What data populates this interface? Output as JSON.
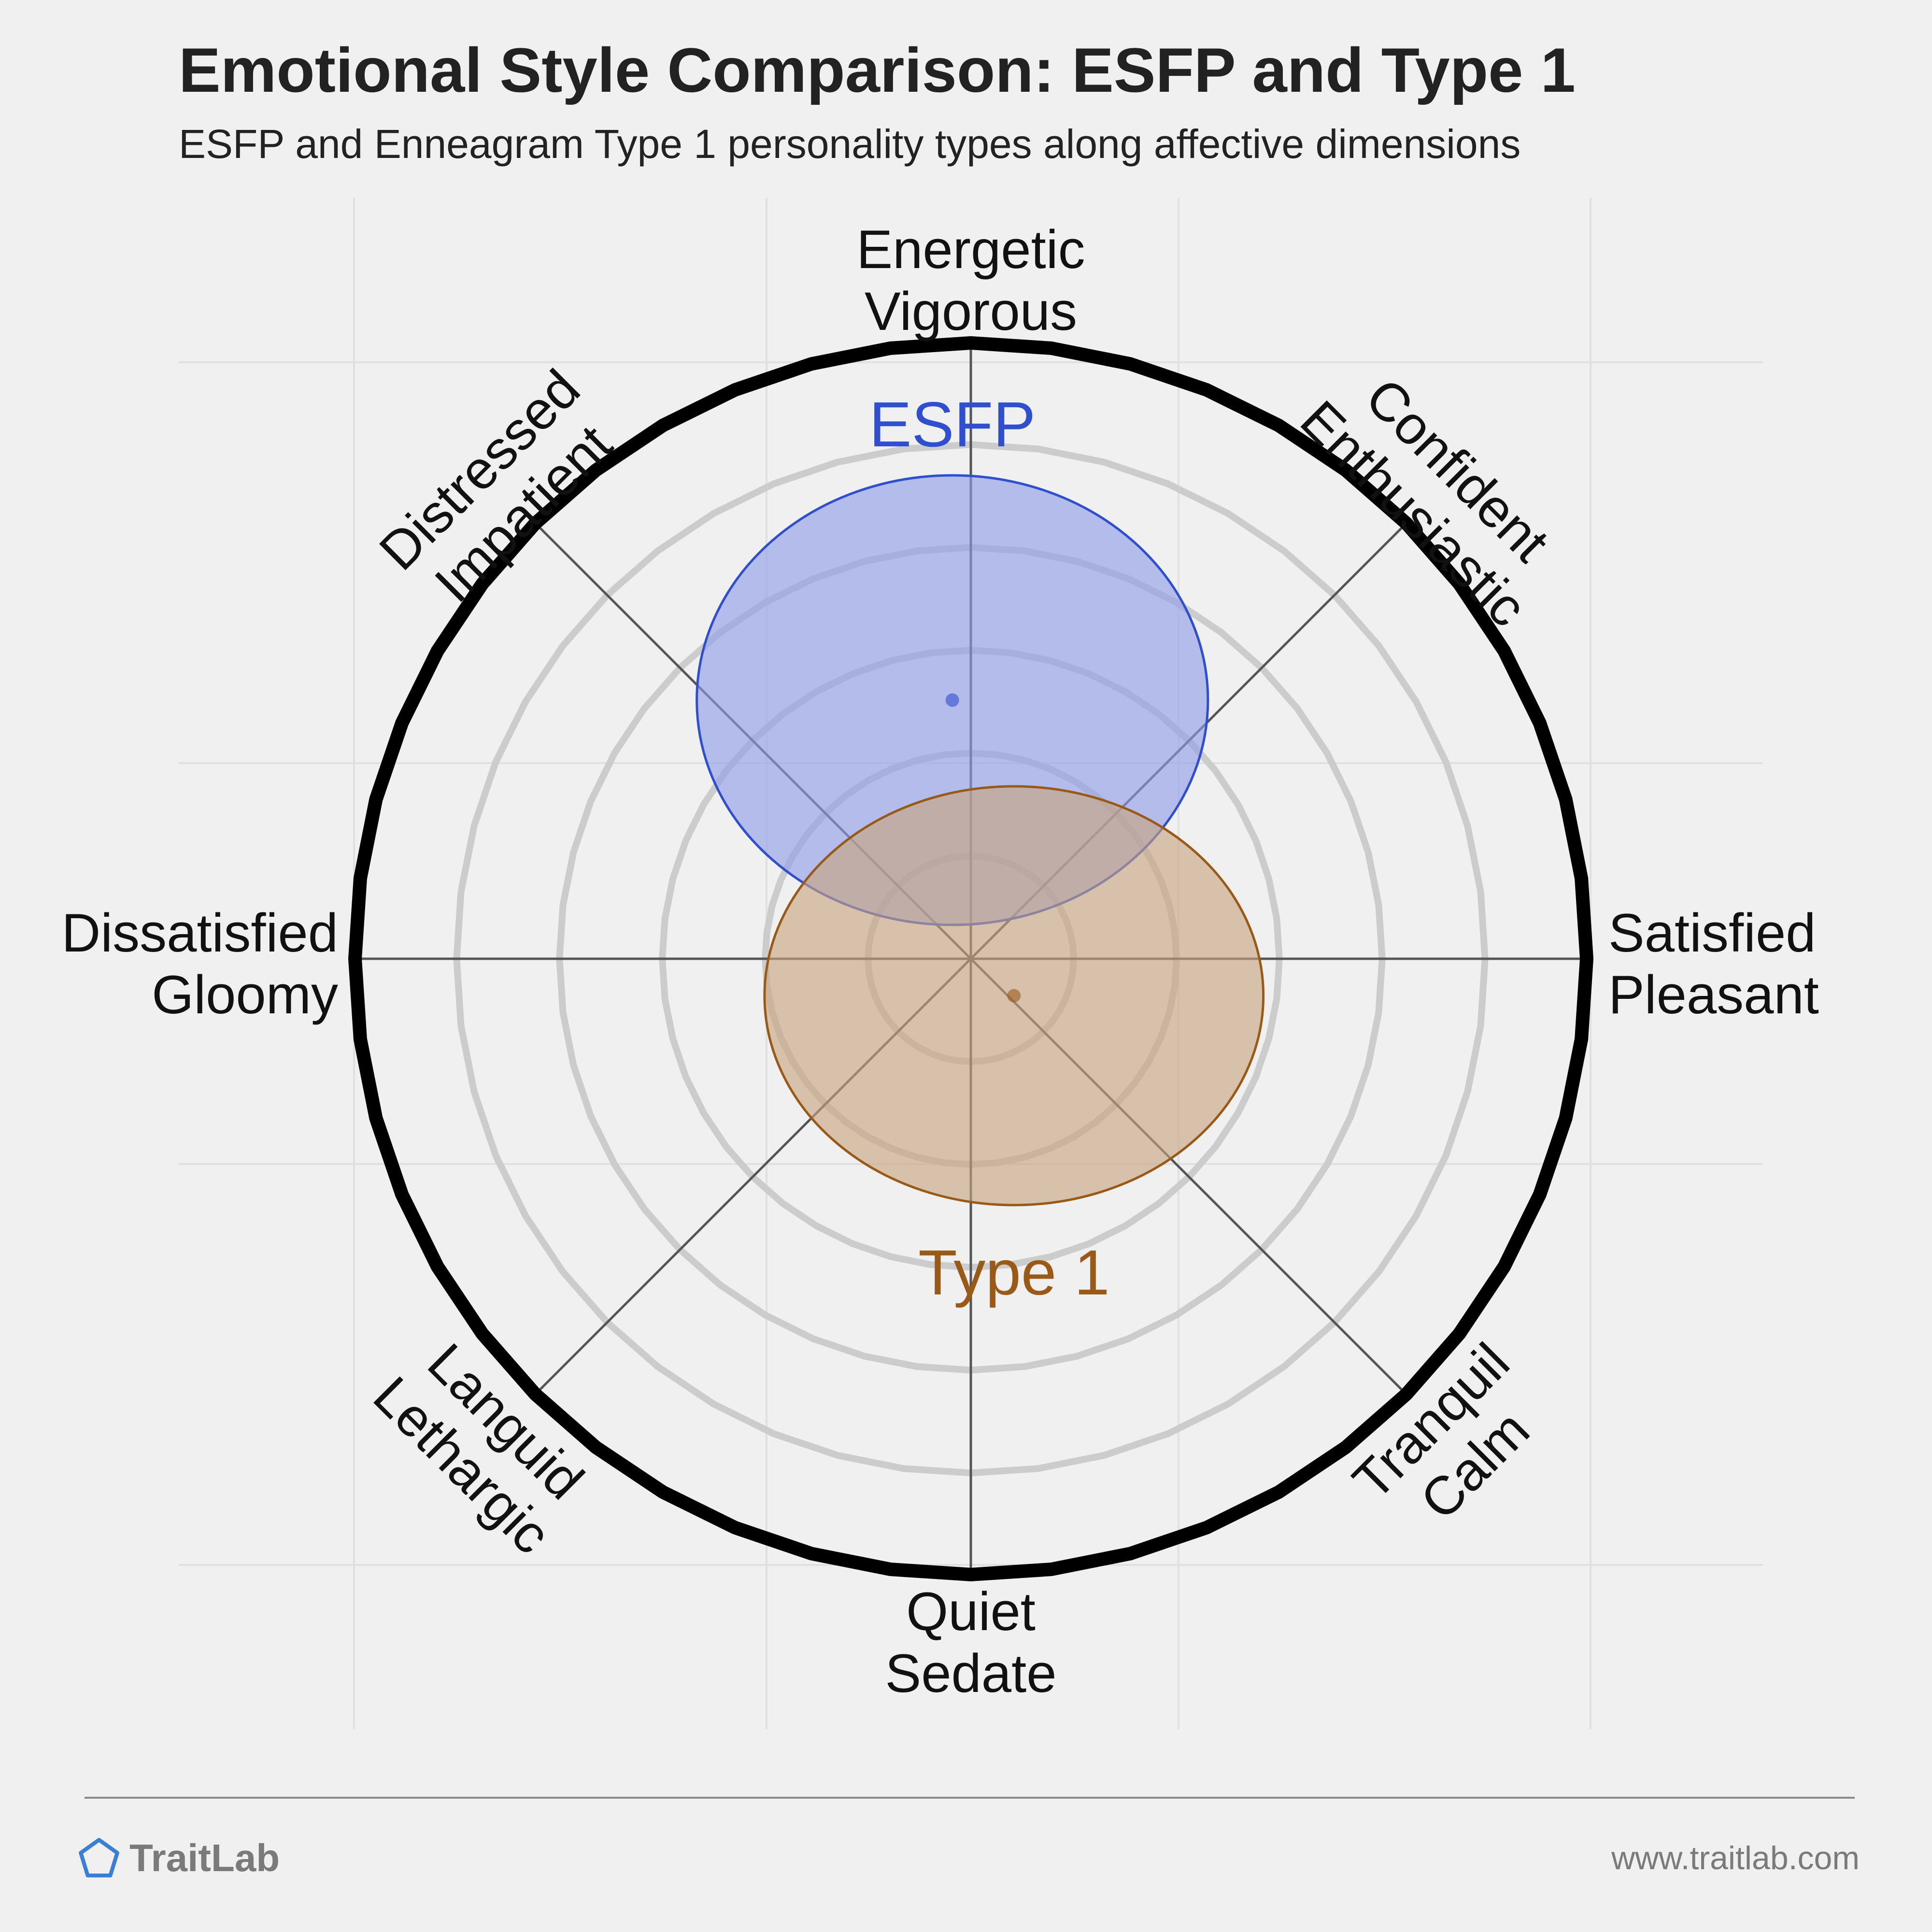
{
  "header": {
    "title": "Emotional Style Comparison: ESFP and Type 1",
    "subtitle": "ESFP and Enneagram Type 1 personality types along affective dimensions"
  },
  "chart_data": {
    "type": "scatter",
    "title": "Emotional Style Comparison: ESFP and Type 1",
    "subtitle": "ESFP and Enneagram Type 1 personality types along affective dimensions",
    "x_axis": {
      "negative": [
        "Dissatisfied",
        "Gloomy"
      ],
      "positive": [
        "Satisfied",
        "Pleasant"
      ],
      "range": [
        -1,
        1
      ]
    },
    "y_axis": {
      "negative": [
        "Quiet",
        "Sedate"
      ],
      "positive": [
        "Energetic",
        "Vigorous"
      ],
      "range": [
        -1,
        1
      ]
    },
    "diagonal_labels": {
      "top_right": [
        "Confident",
        "Enthusiastic"
      ],
      "top_left": [
        "Distressed",
        "Impatient"
      ],
      "bottom_left": [
        "Languid",
        "Lethargic"
      ],
      "bottom_right": [
        "Tranquil",
        "Calm"
      ]
    },
    "grid": true,
    "series": [
      {
        "name": "ESFP",
        "x": -0.03,
        "y": 0.42,
        "spread_x": 0.415,
        "spread_y": 0.365,
        "color": "#2f4fcf",
        "fill": "#8e9de6"
      },
      {
        "name": "Type 1",
        "x": 0.07,
        "y": -0.06,
        "spread_x": 0.405,
        "spread_y": 0.34,
        "color": "#9a5a17",
        "fill": "#c9a57f"
      }
    ]
  },
  "footer": {
    "brand": "TraitLab",
    "url": "www.traitlab.com",
    "brand_color": "#3b7ed6"
  }
}
